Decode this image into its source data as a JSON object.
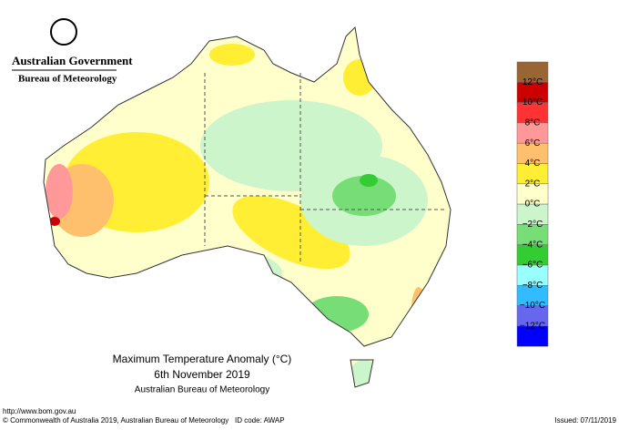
{
  "header": {
    "government": "Australian Government",
    "bureau": "Bureau of Meteorology"
  },
  "legend": {
    "colors": [
      "#996633",
      "#cc0000",
      "#ff3333",
      "#ff9999",
      "#ffc06e",
      "#ffee33",
      "#ffffcc",
      "#ccf5cc",
      "#77dd77",
      "#33cc33",
      "#99ffff",
      "#33bbff",
      "#6666ee",
      "#0000ff"
    ],
    "labels": [
      "12°C",
      "10°C",
      "8°C",
      "6°C",
      "4°C",
      "2°C",
      "0°C",
      "−2°C",
      "−4°C",
      "−6°C",
      "−8°C",
      "−10°C",
      "−12°C"
    ]
  },
  "title": {
    "line1": "Maximum Temperature Anomaly (°C)",
    "line2": "6th November 2019",
    "line3": "Australian Bureau of Meteorology"
  },
  "footer": {
    "url": "http://www.bom.gov.au",
    "copyright": "© Commonwealth of Australia 2019, Australian Bureau of Meteorology",
    "id": "ID code: AWAP",
    "issued": "Issued: 07/11/2019"
  }
}
